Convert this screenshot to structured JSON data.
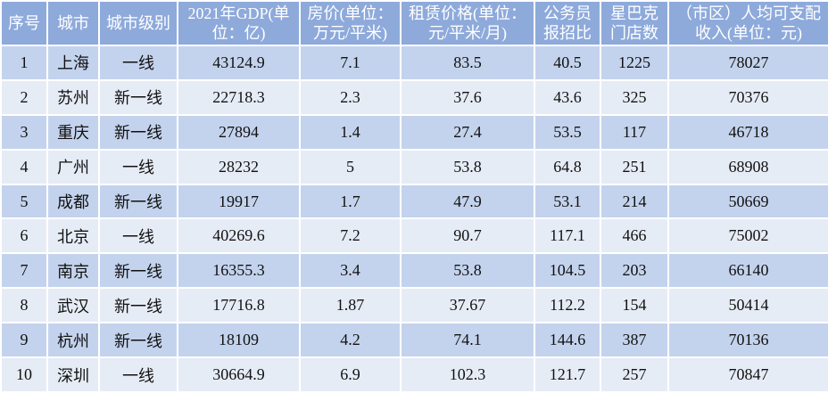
{
  "table": {
    "header": [
      "序号",
      "城市",
      "城市级别",
      "2021年GDP(单位：亿)",
      "房价(单位：万元/平米)",
      "租赁价格(单位：元/平米/月)",
      "公务员报招比",
      "星巴克门店数",
      "（市区）人均可支配收入(单位：元)"
    ],
    "rows": [
      [
        "1",
        "上海",
        "一线",
        "43124.9",
        "7.1",
        "83.5",
        "40.5",
        "1225",
        "78027"
      ],
      [
        "2",
        "苏州",
        "新一线",
        "22718.3",
        "2.3",
        "37.6",
        "43.6",
        "325",
        "70376"
      ],
      [
        "3",
        "重庆",
        "新一线",
        "27894",
        "1.4",
        "27.4",
        "53.5",
        "117",
        "46718"
      ],
      [
        "4",
        "广州",
        "一线",
        "28232",
        "5",
        "53.8",
        "64.8",
        "251",
        "68908"
      ],
      [
        "5",
        "成都",
        "新一线",
        "19917",
        "1.7",
        "47.9",
        "53.1",
        "214",
        "50669"
      ],
      [
        "6",
        "北京",
        "一线",
        "40269.6",
        "7.2",
        "90.7",
        "117.1",
        "466",
        "75002"
      ],
      [
        "7",
        "南京",
        "新一线",
        "16355.3",
        "3.4",
        "53.8",
        "104.5",
        "203",
        "66140"
      ],
      [
        "8",
        "武汉",
        "新一线",
        "17716.8",
        "1.87",
        "37.67",
        "112.2",
        "154",
        "50414"
      ],
      [
        "9",
        "杭州",
        "新一线",
        "18109",
        "4.2",
        "74.1",
        "144.6",
        "387",
        "70136"
      ],
      [
        "10",
        "深圳",
        "一线",
        "30664.9",
        "6.9",
        "102.3",
        "121.7",
        "257",
        "70847"
      ]
    ]
  }
}
